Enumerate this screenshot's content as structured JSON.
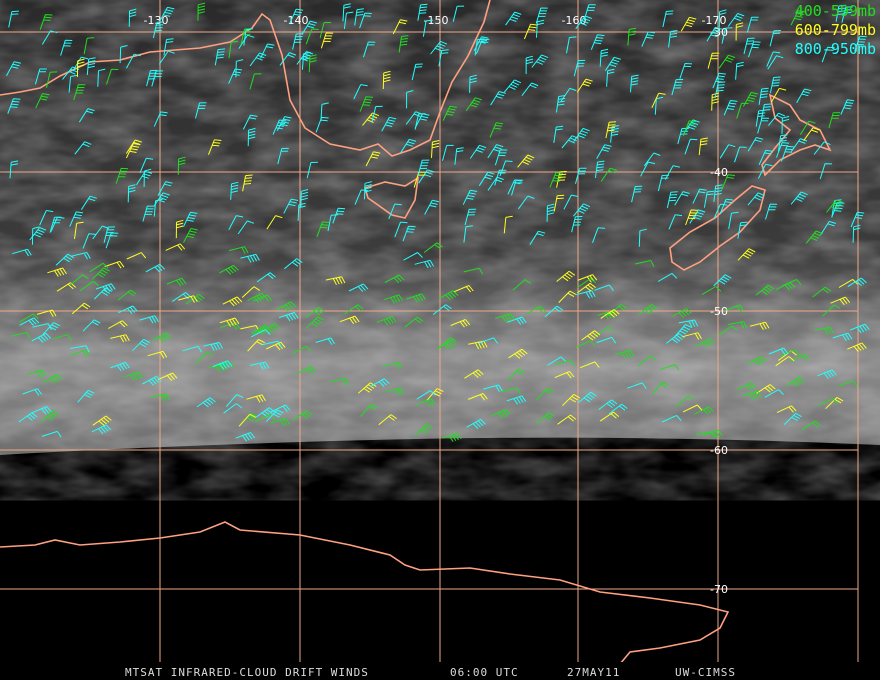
{
  "map": {
    "longitude_labels": [
      -130,
      -140,
      -150,
      -160,
      -170
    ],
    "latitude_labels": [
      -30,
      -40,
      -50,
      -60,
      -70
    ],
    "legend": [
      {
        "label": "400-599mb",
        "color": "#22dd22"
      },
      {
        "label": "600-799mb",
        "color": "#ffff22"
      },
      {
        "label": "800-950mb",
        "color": "#22ffff"
      }
    ],
    "caption": [
      "MTSAT INFRARED-CLOUD DRIFT WINDS",
      "06:00 UTC",
      "27MAY11",
      "UW-CIMSS"
    ]
  }
}
